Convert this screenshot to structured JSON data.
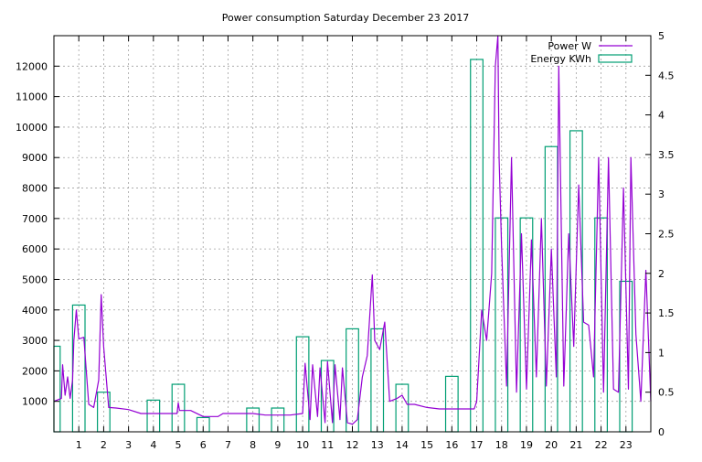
{
  "chart_data": {
    "type": "line",
    "title": "Power consumption Saturday December 23 2017",
    "x_ticks": [
      1,
      2,
      3,
      4,
      5,
      6,
      7,
      8,
      9,
      10,
      11,
      12,
      13,
      14,
      15,
      16,
      17,
      18,
      19,
      20,
      21,
      22,
      23
    ],
    "xlim": [
      0,
      24
    ],
    "y_left": {
      "ticks": [
        1000,
        2000,
        3000,
        4000,
        5000,
        6000,
        7000,
        8000,
        9000,
        10000,
        11000,
        12000
      ],
      "lim": [
        0,
        13000
      ]
    },
    "y_right": {
      "ticks": [
        "0",
        "0.5",
        "1",
        "1.5",
        "2",
        "2.5",
        "3",
        "3.5",
        "4",
        "4.5",
        "5"
      ],
      "lim": [
        0,
        5
      ]
    },
    "grid": true,
    "legend_position": "top-right",
    "colors": {
      "power": "#9400d3",
      "energy": "#009e73"
    },
    "series": [
      {
        "name": "Power W",
        "axis": "left",
        "style": "line",
        "points": [
          [
            0.0,
            1000
          ],
          [
            0.3,
            1100
          ],
          [
            0.35,
            2200
          ],
          [
            0.45,
            1200
          ],
          [
            0.55,
            1800
          ],
          [
            0.65,
            1100
          ],
          [
            0.75,
            1700
          ],
          [
            0.8,
            3000
          ],
          [
            0.9,
            4000
          ],
          [
            1.0,
            3050
          ],
          [
            1.2,
            3100
          ],
          [
            1.4,
            900
          ],
          [
            1.6,
            800
          ],
          [
            1.8,
            1700
          ],
          [
            1.9,
            4500
          ],
          [
            2.0,
            2800
          ],
          [
            2.2,
            800
          ],
          [
            2.5,
            780
          ],
          [
            3.0,
            730
          ],
          [
            3.5,
            600
          ],
          [
            4.0,
            600
          ],
          [
            4.5,
            600
          ],
          [
            4.95,
            600
          ],
          [
            5.0,
            950
          ],
          [
            5.05,
            700
          ],
          [
            5.5,
            700
          ],
          [
            6.0,
            500
          ],
          [
            6.6,
            500
          ],
          [
            6.8,
            600
          ],
          [
            7.5,
            600
          ],
          [
            8.0,
            600
          ],
          [
            8.5,
            550
          ],
          [
            9.5,
            550
          ],
          [
            10.0,
            600
          ],
          [
            10.1,
            2250
          ],
          [
            10.3,
            400
          ],
          [
            10.4,
            2200
          ],
          [
            10.6,
            500
          ],
          [
            10.7,
            2100
          ],
          [
            10.9,
            300
          ],
          [
            11.0,
            2300
          ],
          [
            11.2,
            300
          ],
          [
            11.3,
            2200
          ],
          [
            11.5,
            400
          ],
          [
            11.6,
            2100
          ],
          [
            11.8,
            300
          ],
          [
            12.0,
            250
          ],
          [
            12.2,
            400
          ],
          [
            12.4,
            1800
          ],
          [
            12.6,
            2500
          ],
          [
            12.8,
            5150
          ],
          [
            12.9,
            3000
          ],
          [
            13.1,
            2700
          ],
          [
            13.3,
            3600
          ],
          [
            13.5,
            1000
          ],
          [
            13.8,
            1100
          ],
          [
            14.0,
            1200
          ],
          [
            14.2,
            900
          ],
          [
            14.5,
            900
          ],
          [
            15.0,
            800
          ],
          [
            15.5,
            750
          ],
          [
            16.0,
            750
          ],
          [
            16.5,
            750
          ],
          [
            16.9,
            750
          ],
          [
            17.0,
            1000
          ],
          [
            17.2,
            4000
          ],
          [
            17.4,
            3000
          ],
          [
            17.6,
            5200
          ],
          [
            17.75,
            12000
          ],
          [
            17.85,
            13000
          ],
          [
            17.9,
            9000
          ],
          [
            18.0,
            6000
          ],
          [
            18.2,
            1500
          ],
          [
            18.4,
            9000
          ],
          [
            18.6,
            1300
          ],
          [
            18.8,
            6500
          ],
          [
            19.0,
            1400
          ],
          [
            19.2,
            6300
          ],
          [
            19.4,
            1800
          ],
          [
            19.6,
            7000
          ],
          [
            19.8,
            1500
          ],
          [
            20.0,
            6000
          ],
          [
            20.2,
            1800
          ],
          [
            20.3,
            12000
          ],
          [
            20.5,
            1500
          ],
          [
            20.7,
            6500
          ],
          [
            20.9,
            2800
          ],
          [
            21.1,
            8100
          ],
          [
            21.3,
            3600
          ],
          [
            21.5,
            3500
          ],
          [
            21.7,
            1800
          ],
          [
            21.9,
            9000
          ],
          [
            22.1,
            1300
          ],
          [
            22.3,
            9000
          ],
          [
            22.5,
            1400
          ],
          [
            22.7,
            1300
          ],
          [
            22.9,
            8000
          ],
          [
            23.1,
            1400
          ],
          [
            23.2,
            9000
          ],
          [
            23.4,
            3200
          ],
          [
            23.6,
            1000
          ],
          [
            23.8,
            5300
          ],
          [
            24.0,
            1000
          ]
        ]
      },
      {
        "name": "Energy KWh",
        "axis": "right",
        "style": "steps",
        "bars": [
          {
            "x0": 0.0,
            "x1": 0.25,
            "value": 1.08
          },
          {
            "x0": 0.75,
            "x1": 1.25,
            "value": 1.6
          },
          {
            "x0": 1.75,
            "x1": 2.25,
            "value": 0.5
          },
          {
            "x0": 3.75,
            "x1": 4.25,
            "value": 0.4
          },
          {
            "x0": 4.75,
            "x1": 5.25,
            "value": 0.6
          },
          {
            "x0": 5.75,
            "x1": 6.25,
            "value": 0.18
          },
          {
            "x0": 7.75,
            "x1": 8.25,
            "value": 0.3
          },
          {
            "x0": 8.75,
            "x1": 9.25,
            "value": 0.3
          },
          {
            "x0": 9.75,
            "x1": 10.25,
            "value": 1.2
          },
          {
            "x0": 10.75,
            "x1": 11.25,
            "value": 0.9
          },
          {
            "x0": 11.75,
            "x1": 12.25,
            "value": 1.3
          },
          {
            "x0": 12.75,
            "x1": 13.25,
            "value": 1.3
          },
          {
            "x0": 13.75,
            "x1": 14.25,
            "value": 0.6
          },
          {
            "x0": 15.75,
            "x1": 16.25,
            "value": 0.7
          },
          {
            "x0": 16.75,
            "x1": 17.25,
            "value": 4.7
          },
          {
            "x0": 17.75,
            "x1": 18.25,
            "value": 2.7
          },
          {
            "x0": 18.75,
            "x1": 19.25,
            "value": 2.7
          },
          {
            "x0": 19.75,
            "x1": 20.25,
            "value": 3.6
          },
          {
            "x0": 20.75,
            "x1": 21.25,
            "value": 3.8
          },
          {
            "x0": 21.75,
            "x1": 22.25,
            "value": 2.7
          },
          {
            "x0": 22.75,
            "x1": 23.25,
            "value": 1.9
          }
        ]
      }
    ]
  }
}
